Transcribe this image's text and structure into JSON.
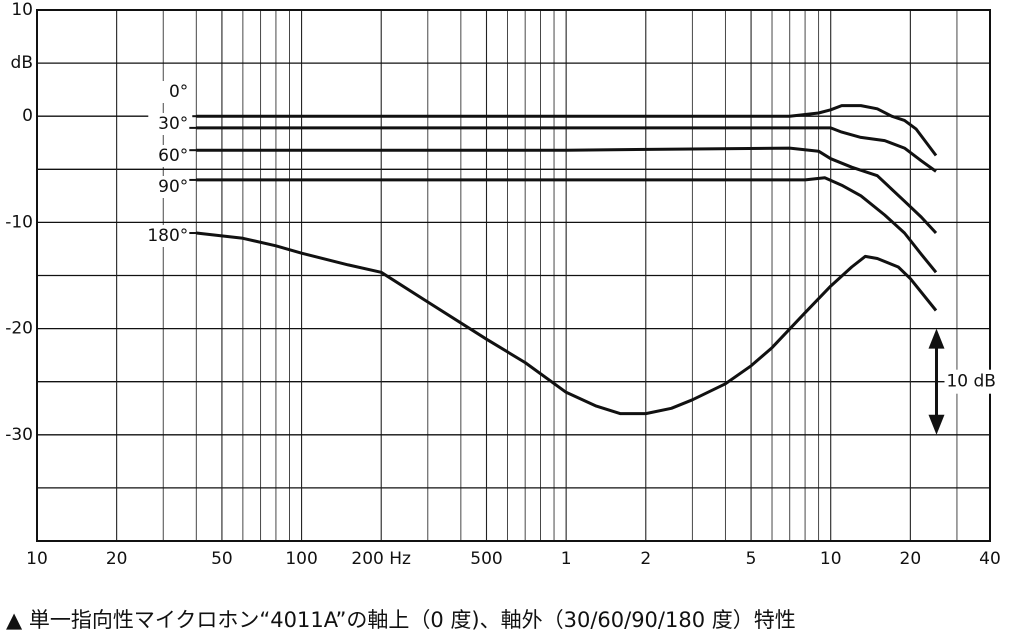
{
  "chart_data": {
    "type": "line",
    "log_x": true,
    "grid": true,
    "color": "#111111",
    "xlim": [
      10,
      40000
    ],
    "ylim": [
      -40,
      10
    ],
    "xticks": [
      10,
      20,
      50,
      100,
      {
        "value": 200,
        "label": "200 Hz"
      },
      500,
      {
        "value": 1000,
        "label": "1"
      },
      {
        "value": 2000,
        "label": "2"
      },
      {
        "value": 5000,
        "label": "5"
      },
      {
        "value": 10000,
        "label": "10"
      },
      {
        "value": 20000,
        "label": "20"
      },
      {
        "value": 40000,
        "label": "40"
      }
    ],
    "xminor": [
      30,
      40,
      60,
      70,
      80,
      90,
      300,
      400,
      600,
      700,
      800,
      900,
      3000,
      4000,
      6000,
      7000,
      8000,
      9000,
      30000
    ],
    "yticks": [
      10,
      {
        "value": 5,
        "label": "dB"
      },
      0,
      -10,
      -20,
      -30
    ],
    "yminor": [
      -5,
      -15,
      -25,
      -35
    ],
    "series": [
      {
        "name": "0°",
        "color": "#111111",
        "x": [
          40,
          1000,
          7000,
          9000,
          10000,
          11000,
          13000,
          15000,
          17000,
          19000,
          21000,
          25000
        ],
        "values": [
          0,
          0,
          0,
          0.3,
          0.6,
          1.0,
          1.0,
          0.7,
          0,
          -0.4,
          -1.2,
          -3.7
        ]
      },
      {
        "name": "30°",
        "color": "#111111",
        "x": [
          40,
          1000,
          10000,
          11000,
          13000,
          16000,
          19000,
          22000,
          25000
        ],
        "values": [
          -1.1,
          -1.1,
          -1.1,
          -1.5,
          -2.0,
          -2.3,
          -3.0,
          -4.2,
          -5.2
        ]
      },
      {
        "name": "60°",
        "color": "#111111",
        "x": [
          40,
          1000,
          7000,
          9000,
          10000,
          12000,
          15000,
          19000,
          22000,
          25000
        ],
        "values": [
          -3.2,
          -3.2,
          -3.0,
          -3.3,
          -4.0,
          -4.8,
          -5.6,
          -8.0,
          -9.5,
          -11.0
        ]
      },
      {
        "name": "90°",
        "color": "#111111",
        "x": [
          40,
          1000,
          8000,
          9500,
          11000,
          13000,
          16000,
          19000,
          22000,
          25000
        ],
        "values": [
          -6.0,
          -6.0,
          -6.0,
          -5.8,
          -6.5,
          -7.5,
          -9.3,
          -11.0,
          -13.0,
          -14.7
        ]
      },
      {
        "name": "180°",
        "color": "#111111",
        "x": [
          40,
          60,
          80,
          100,
          150,
          200,
          300,
          500,
          700,
          1000,
          1300,
          1600,
          2000,
          2500,
          3000,
          4000,
          5000,
          6000,
          8000,
          10000,
          12000,
          13500,
          15000,
          18000,
          20000,
          25000
        ],
        "values": [
          -11.0,
          -11.5,
          -12.2,
          -12.9,
          -14.0,
          -14.7,
          -17.5,
          -21.0,
          -23.2,
          -26.0,
          -27.3,
          -28.0,
          -28.0,
          -27.5,
          -26.7,
          -25.2,
          -23.5,
          -21.8,
          -18.5,
          -16.0,
          -14.2,
          -13.2,
          -13.4,
          -14.2,
          -15.3,
          -18.3
        ]
      }
    ],
    "annotation": {
      "text": "10 dB",
      "from": -20,
      "to": -30
    },
    "caption": "▲ 単一指向性マイクロホン“4011A”の軸上（0 度)、軸外（30/60/90/180 度）特性"
  }
}
